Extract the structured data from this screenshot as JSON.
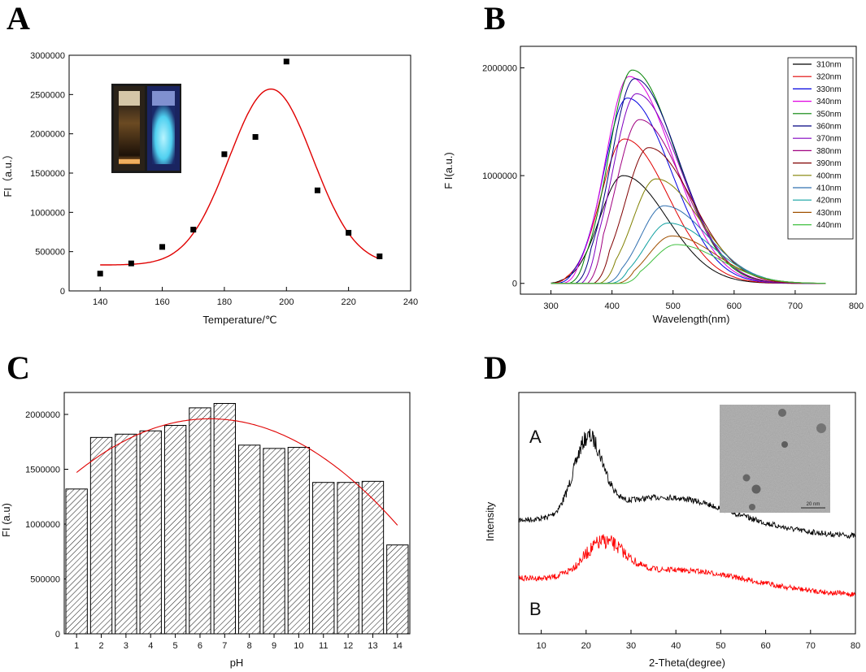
{
  "panels": {
    "a": "A",
    "b": "B",
    "c": "C",
    "d": "D"
  },
  "chart_data": [
    {
      "id": "A",
      "type": "scatter",
      "xlabel": "Temperature/℃",
      "ylabel": "FI（a.u.）",
      "xlim": [
        130,
        240
      ],
      "ylim": [
        0,
        3000000
      ],
      "xticks": [
        140,
        160,
        180,
        200,
        220,
        240
      ],
      "yticks": [
        0,
        500000,
        1000000,
        1500000,
        2000000,
        2500000,
        3000000
      ],
      "points": [
        {
          "x": 140,
          "y": 220000
        },
        {
          "x": 150,
          "y": 350000
        },
        {
          "x": 160,
          "y": 560000
        },
        {
          "x": 170,
          "y": 780000
        },
        {
          "x": 180,
          "y": 1740000
        },
        {
          "x": 190,
          "y": 1960000
        },
        {
          "x": 200,
          "y": 2920000
        },
        {
          "x": 210,
          "y": 1280000
        },
        {
          "x": 220,
          "y": 740000
        },
        {
          "x": 230,
          "y": 440000
        }
      ],
      "fit": {
        "type": "gaussian",
        "baseline": 330000,
        "amplitude": 2240000,
        "center": 195,
        "sigma": 13.5,
        "x_range": [
          140,
          230
        ],
        "color": "#e00000"
      },
      "inset": "photo of vials under daylight and UV light"
    },
    {
      "id": "B",
      "type": "line",
      "xlabel": "Wavelength(nm)",
      "ylabel": "F I(a.u.)",
      "xlim": [
        250,
        800
      ],
      "ylim": [
        -100000,
        2200000
      ],
      "xticks": [
        300,
        400,
        500,
        600,
        700,
        800
      ],
      "yticks": [
        0,
        1000000,
        2000000
      ],
      "x_range": [
        300,
        750
      ],
      "series": [
        {
          "name": "310nm",
          "excitation": 310,
          "peak_x": 418,
          "peak_y": 1000000,
          "color": "#000000"
        },
        {
          "name": "320nm",
          "excitation": 320,
          "peak_x": 420,
          "peak_y": 1340000,
          "color": "#e00000"
        },
        {
          "name": "330nm",
          "excitation": 330,
          "peak_x": 425,
          "peak_y": 1720000,
          "color": "#0000e0"
        },
        {
          "name": "340nm",
          "excitation": 340,
          "peak_x": 428,
          "peak_y": 1920000,
          "color": "#e000e0"
        },
        {
          "name": "350nm",
          "excitation": 350,
          "peak_x": 433,
          "peak_y": 1980000,
          "color": "#008000"
        },
        {
          "name": "360nm",
          "excitation": 360,
          "peak_x": 437,
          "peak_y": 1900000,
          "color": "#000080"
        },
        {
          "name": "370nm",
          "excitation": 370,
          "peak_x": 440,
          "peak_y": 1760000,
          "color": "#8000c0"
        },
        {
          "name": "380nm",
          "excitation": 380,
          "peak_x": 445,
          "peak_y": 1520000,
          "color": "#a00080"
        },
        {
          "name": "390nm",
          "excitation": 390,
          "peak_x": 460,
          "peak_y": 1260000,
          "color": "#800000"
        },
        {
          "name": "400nm",
          "excitation": 400,
          "peak_x": 472,
          "peak_y": 970000,
          "color": "#808000"
        },
        {
          "name": "410nm",
          "excitation": 410,
          "peak_x": 485,
          "peak_y": 720000,
          "color": "#3070b0"
        },
        {
          "name": "420nm",
          "excitation": 420,
          "peak_x": 492,
          "peak_y": 560000,
          "color": "#10a0a0"
        },
        {
          "name": "430nm",
          "excitation": 430,
          "peak_x": 498,
          "peak_y": 440000,
          "color": "#a05000"
        },
        {
          "name": "440nm",
          "excitation": 440,
          "peak_x": 505,
          "peak_y": 360000,
          "color": "#40c040"
        }
      ],
      "legend": "top-right"
    },
    {
      "id": "C",
      "type": "bar",
      "xlabel": "pH",
      "ylabel": "FI (a.u)",
      "ylim": [
        0,
        2200000
      ],
      "yticks": [
        0,
        500000,
        1000000,
        1500000,
        2000000
      ],
      "categories": [
        "1",
        "2",
        "3",
        "4",
        "5",
        "6",
        "7",
        "8",
        "9",
        "10",
        "11",
        "12",
        "13",
        "14"
      ],
      "values": [
        1320000,
        1790000,
        1820000,
        1850000,
        1900000,
        2060000,
        2100000,
        1720000,
        1690000,
        1700000,
        1380000,
        1380000,
        1390000,
        810000
      ],
      "fit": {
        "type": "quadratic",
        "vertex_x": 6.4,
        "vertex_y": 1960000,
        "at_x1": 1470000,
        "x_range": [
          1,
          14
        ],
        "color": "#e00000"
      },
      "bar_pattern": "diagonal-hatch"
    },
    {
      "id": "D",
      "type": "line",
      "xlabel": "2-Theta(degree)",
      "ylabel": "Intensity",
      "xlim": [
        5,
        80
      ],
      "xticks": [
        10,
        20,
        30,
        40,
        50,
        60,
        70,
        80
      ],
      "series": [
        {
          "name": "A",
          "color": "#000000",
          "peak_x": 20.5,
          "description": "XRD pattern, broad peak near 20.5°"
        },
        {
          "name": "B",
          "color": "#ff0000",
          "peak_x": 24,
          "description": "XRD pattern, broad peak near 24°"
        }
      ],
      "inset": "TEM image of nanoparticles",
      "inset_scale_label": "20 nm"
    }
  ]
}
